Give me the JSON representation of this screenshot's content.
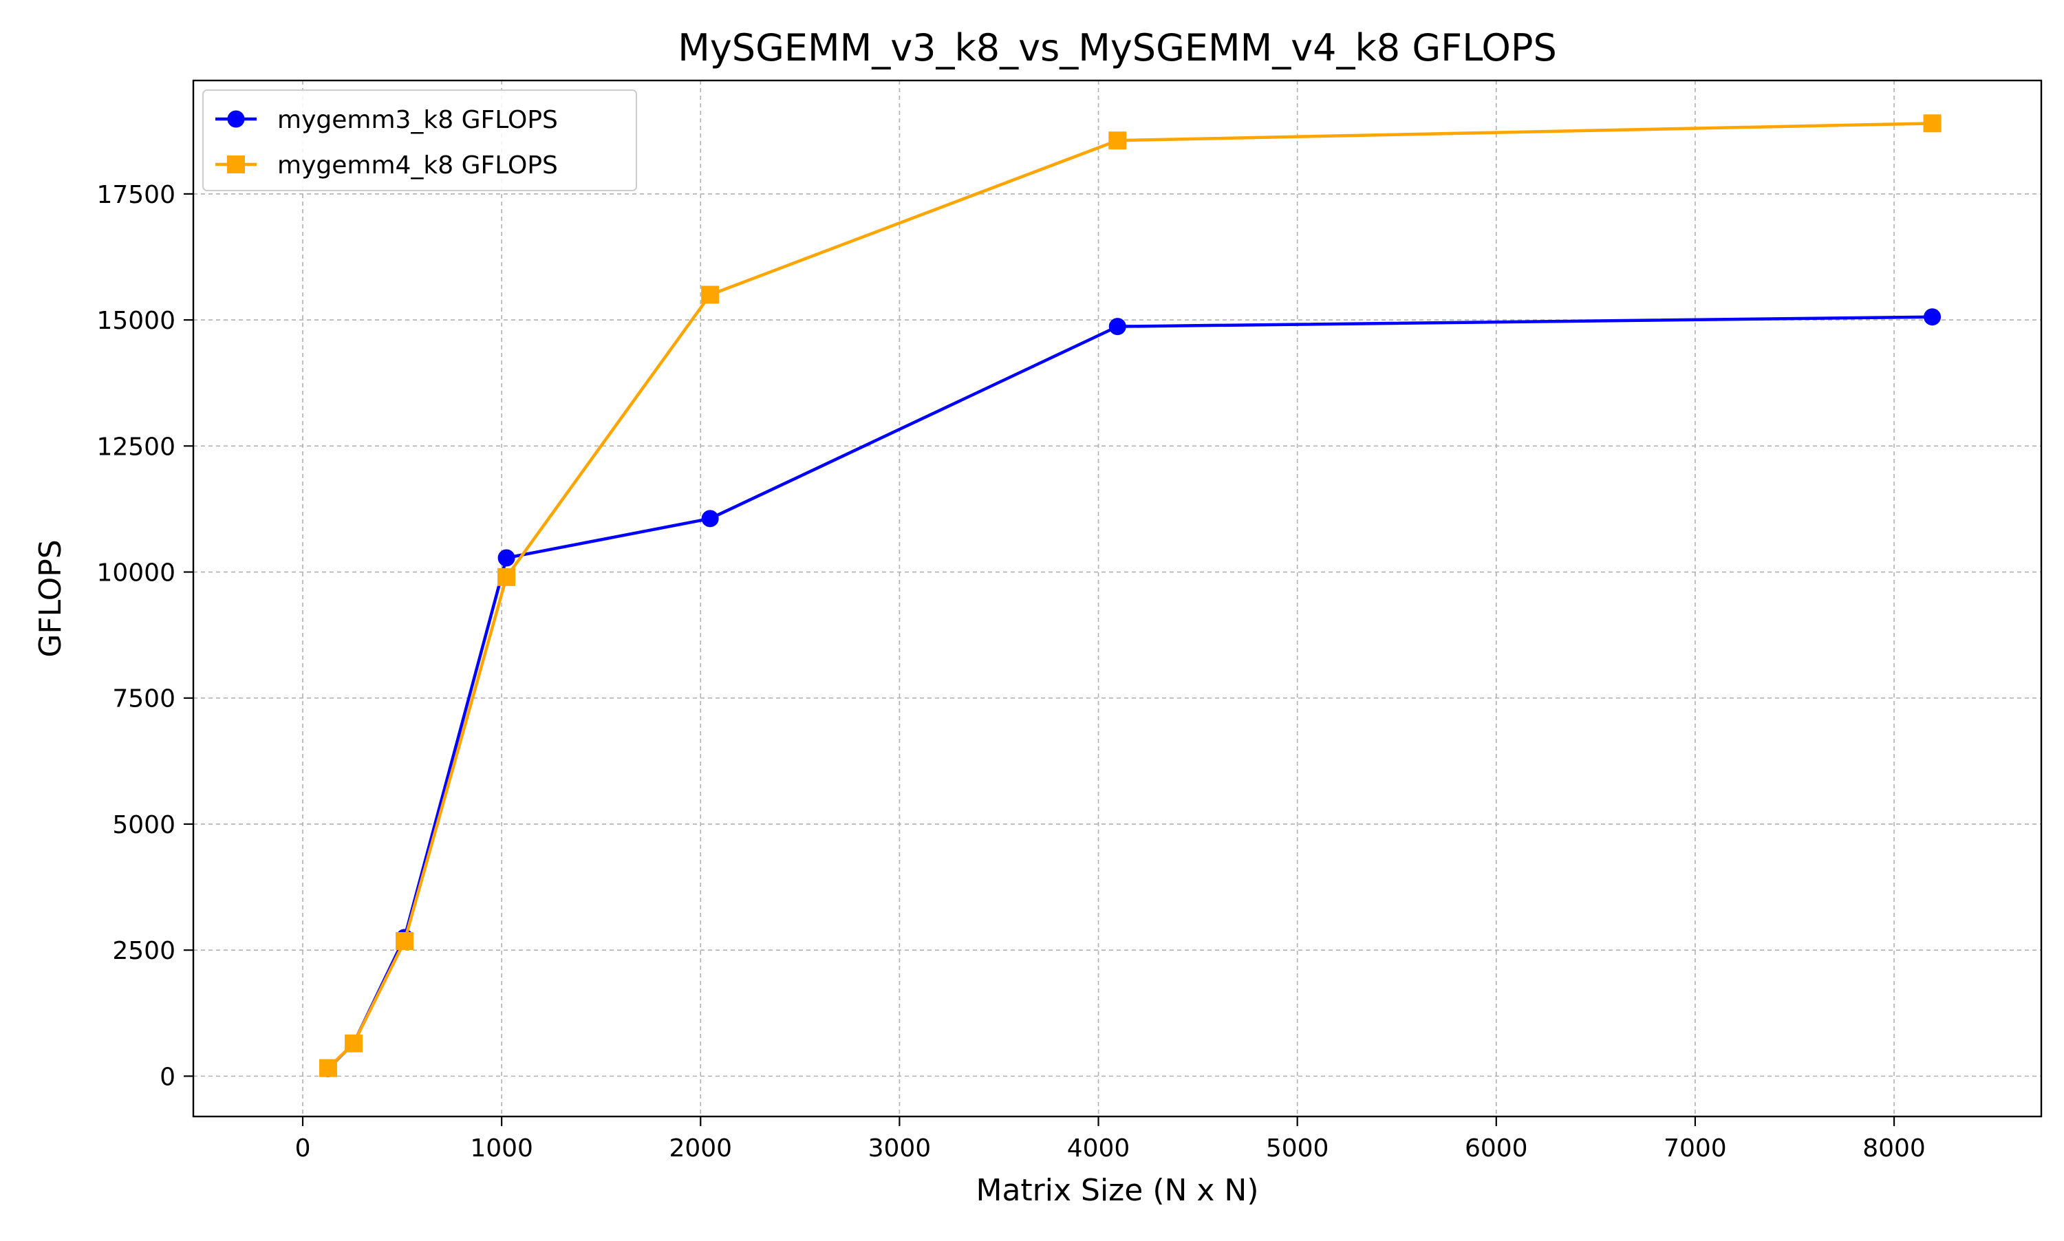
{
  "chart_data": {
    "type": "line",
    "title": "MySGEMM_v3_k8_vs_MySGEMM_v4_k8 GFLOPS",
    "xlabel": "Matrix Size (N x N)",
    "ylabel": "GFLOPS",
    "xlim": [
      -550,
      8740
    ],
    "ylim": [
      -800,
      19750
    ],
    "xticks": [
      0,
      1000,
      2000,
      3000,
      4000,
      5000,
      6000,
      7000,
      8000
    ],
    "xtick_labels": [
      "0",
      "1000",
      "2000",
      "3000",
      "4000",
      "5000",
      "6000",
      "7000",
      "8000"
    ],
    "yticks": [
      0,
      2500,
      5000,
      7500,
      10000,
      12500,
      15000,
      17500
    ],
    "ytick_labels": [
      "0",
      "2500",
      "5000",
      "7500",
      "10000",
      "12500",
      "15000",
      "17500"
    ],
    "grid": true,
    "legend_position": "top-left",
    "x": [
      128,
      256,
      512,
      1024,
      2048,
      4096,
      8192
    ],
    "series": [
      {
        "name": "mygemm3_k8 GFLOPS",
        "color": "#0000ff",
        "marker": "circle",
        "values": [
          150,
          650,
          2750,
          10280,
          11060,
          14870,
          15060
        ]
      },
      {
        "name": "mygemm4_k8 GFLOPS",
        "color": "#ffa500",
        "marker": "square",
        "values": [
          160,
          650,
          2680,
          9900,
          15500,
          18560,
          18900
        ]
      }
    ]
  }
}
